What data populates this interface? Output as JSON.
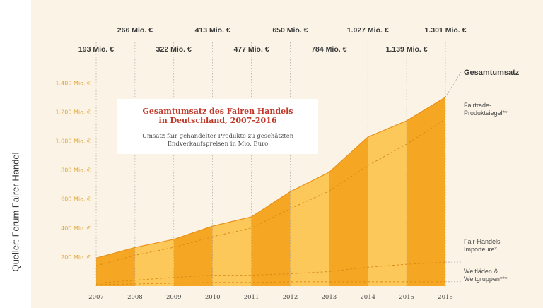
{
  "source_note": "Queller: Forum Fairer Handel",
  "colors": {
    "band_dark": "#f5a623",
    "band_light": "#fcc859",
    "panel_bg": "#fbf4e6",
    "title_red": "#c0392b",
    "tick_orange": "#e0a840"
  },
  "chart_data": {
    "type": "area",
    "title_lines": [
      "Gesamtumsatz des Fairen Handels",
      "in Deutschland, 2007-2016"
    ],
    "subtitle_lines": [
      "Umsatz fair gehandelter Produkte zu geschätzten",
      "Endverkaufspreisen in Mio. Euro"
    ],
    "x": [
      "2007",
      "2008",
      "2009",
      "2010",
      "2011",
      "2012",
      "2013",
      "2014",
      "2015",
      "2016"
    ],
    "ylim": [
      0,
      1400
    ],
    "y_ticks": [
      {
        "value": 200,
        "label": "200 Mio. €"
      },
      {
        "value": 400,
        "label": "400 Mio. €"
      },
      {
        "value": 600,
        "label": "600 Mio. €"
      },
      {
        "value": 800,
        "label": "800 Mio. €"
      },
      {
        "value": 1000,
        "label": "1.000 Mio. €"
      },
      {
        "value": 1200,
        "label": "1.200 Mio. €"
      },
      {
        "value": 1400,
        "label": "1.400 Mio. €"
      }
    ],
    "grid": "vertical-dotted",
    "series": [
      {
        "name": "Gesamtumsatz",
        "values": [
          193,
          266,
          322,
          413,
          477,
          650,
          784,
          1027,
          1139,
          1301
        ],
        "value_labels": [
          "193 Mio. €",
          "266 Mio. €",
          "322 Mio. €",
          "413 Mio. €",
          "477 Mio. €",
          "650 Mio. €",
          "784 Mio. €",
          "1.027 Mio. €",
          "1.139 Mio. €",
          "1.301 Mio. €"
        ]
      },
      {
        "name": "Fairtrade-Produktsiegel**",
        "name_lines": [
          "Fairtrade-",
          "Produktsiegel**"
        ],
        "values": [
          140,
          212,
          267,
          340,
          400,
          533,
          654,
          830,
          978,
          1150
        ]
      },
      {
        "name": "Fair-Handels-Importeure*",
        "name_lines": [
          "Fair-Handels-",
          "Importeure*"
        ],
        "values": [
          20,
          40,
          60,
          75,
          75,
          85,
          100,
          130,
          150,
          165
        ]
      },
      {
        "name": "Weltläden & Weltgruppen***",
        "name_lines": [
          "Weltläden &",
          "Weltgruppen***"
        ],
        "values": [
          10,
          15,
          20,
          25,
          25,
          30,
          30,
          30,
          30,
          30
        ]
      }
    ]
  }
}
